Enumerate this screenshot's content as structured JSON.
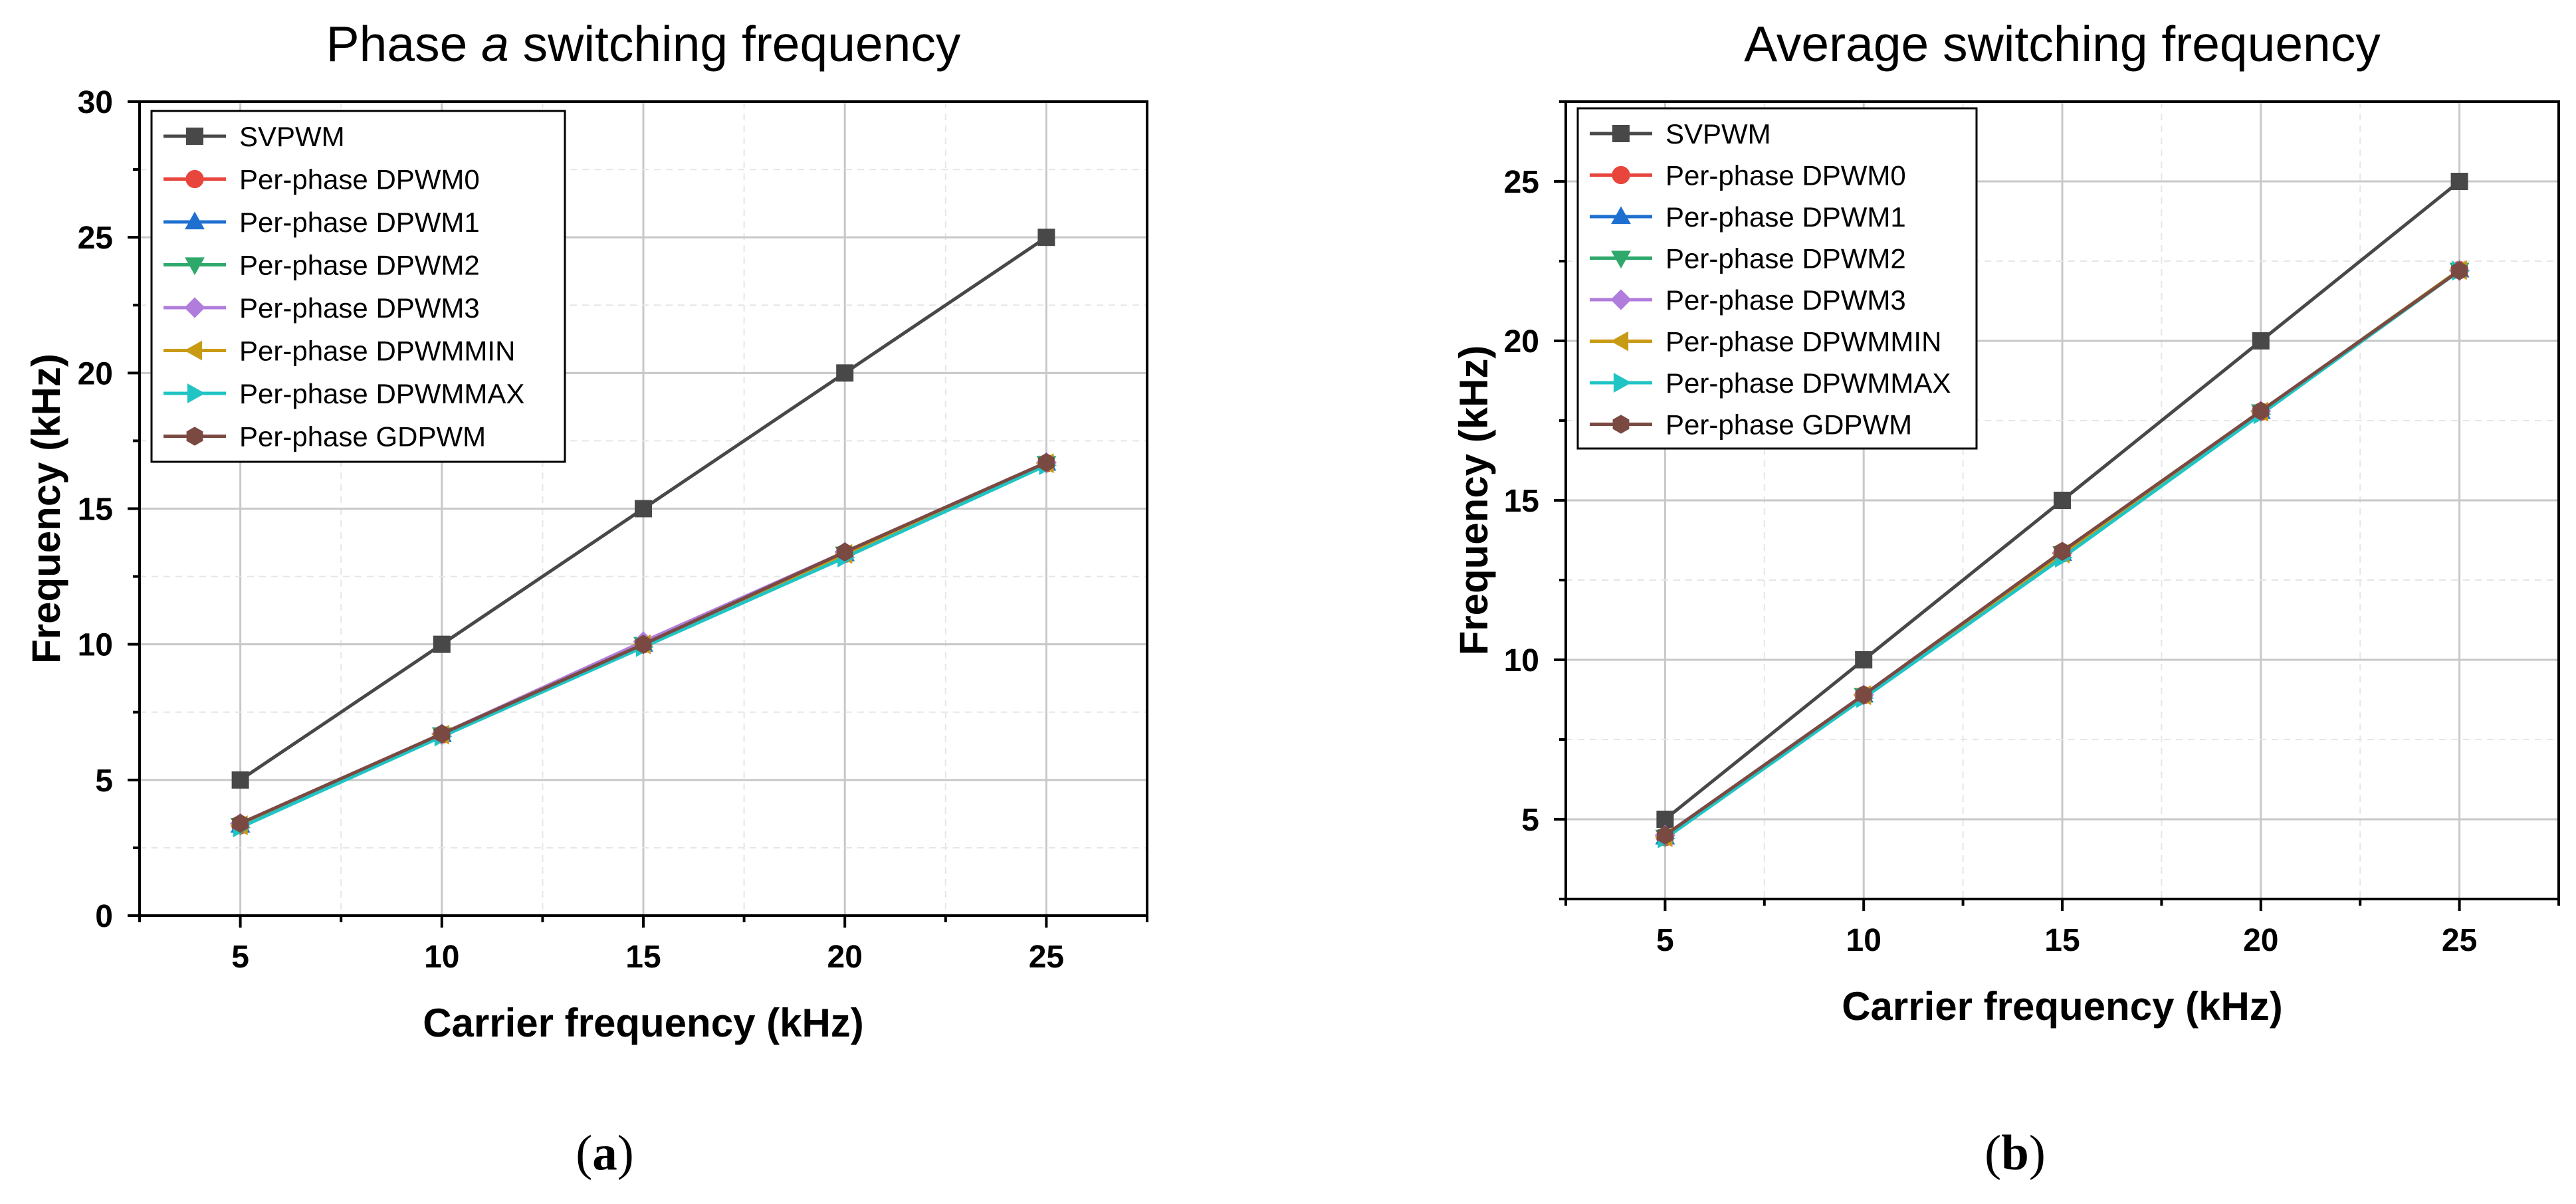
{
  "figure": {
    "captions": [
      "(a)",
      "(b)"
    ]
  },
  "chart_data": [
    {
      "type": "line",
      "title_prefix": "Phase ",
      "title_italic": "a",
      "title_suffix": " switching frequency",
      "xlabel": "Carrier frequency (kHz)",
      "ylabel": "Frequency (kHz)",
      "xlim": [
        2.5,
        27.5
      ],
      "ylim": [
        0,
        30
      ],
      "xticks": [
        5,
        10,
        15,
        20,
        25
      ],
      "yticks": [
        0,
        5,
        10,
        15,
        20,
        25,
        30
      ],
      "grid": true,
      "legend_position": "top-left",
      "x": [
        5,
        10,
        15,
        20,
        25
      ],
      "series": [
        {
          "name": "SVPWM",
          "color": "#484848",
          "marker": "square",
          "values": [
            5,
            10,
            15,
            20,
            25
          ]
        },
        {
          "name": "Per-phase DPWM0",
          "color": "#e8453c",
          "marker": "circle",
          "values": [
            3.33,
            6.67,
            10.0,
            13.33,
            16.67
          ]
        },
        {
          "name": "Per-phase DPWM1",
          "color": "#1f6fd1",
          "marker": "triangle-up",
          "values": [
            3.33,
            6.67,
            10.0,
            13.33,
            16.67
          ]
        },
        {
          "name": "Per-phase DPWM2",
          "color": "#2ea86b",
          "marker": "triangle-down",
          "values": [
            3.33,
            6.67,
            10.0,
            13.33,
            16.67
          ]
        },
        {
          "name": "Per-phase DPWM3",
          "color": "#b07ddc",
          "marker": "diamond",
          "values": [
            3.4,
            6.7,
            10.1,
            13.4,
            16.7
          ]
        },
        {
          "name": "Per-phase DPWMMIN",
          "color": "#c99a14",
          "marker": "triangle-left",
          "values": [
            3.33,
            6.67,
            10.0,
            13.33,
            16.67
          ]
        },
        {
          "name": "Per-phase DPWMMAX",
          "color": "#20c4c4",
          "marker": "triangle-right",
          "values": [
            3.25,
            6.6,
            9.9,
            13.2,
            16.6
          ]
        },
        {
          "name": "Per-phase GDPWM",
          "color": "#7a4a42",
          "marker": "hexagon",
          "values": [
            3.4,
            6.7,
            10.0,
            13.4,
            16.7
          ]
        }
      ]
    },
    {
      "type": "line",
      "title_prefix": "Average switching frequency",
      "title_italic": "",
      "title_suffix": "",
      "xlabel": "Carrier frequency (kHz)",
      "ylabel": "Frequency (kHz)",
      "xlim": [
        2.5,
        27.5
      ],
      "ylim": [
        2.5,
        27.5
      ],
      "xticks": [
        5,
        10,
        15,
        20,
        25
      ],
      "yticks": [
        5,
        10,
        15,
        20,
        25
      ],
      "grid": true,
      "legend_position": "top-left",
      "x": [
        5,
        10,
        15,
        20,
        25
      ],
      "series": [
        {
          "name": "SVPWM",
          "color": "#484848",
          "marker": "square",
          "values": [
            5,
            10,
            15,
            20,
            25
          ]
        },
        {
          "name": "Per-phase DPWM0",
          "color": "#e8453c",
          "marker": "circle",
          "values": [
            4.44,
            8.89,
            13.33,
            17.78,
            22.22
          ]
        },
        {
          "name": "Per-phase DPWM1",
          "color": "#1f6fd1",
          "marker": "triangle-up",
          "values": [
            4.44,
            8.89,
            13.33,
            17.78,
            22.22
          ]
        },
        {
          "name": "Per-phase DPWM2",
          "color": "#2ea86b",
          "marker": "triangle-down",
          "values": [
            4.44,
            8.89,
            13.33,
            17.78,
            22.22
          ]
        },
        {
          "name": "Per-phase DPWM3",
          "color": "#b07ddc",
          "marker": "diamond",
          "values": [
            4.5,
            8.9,
            13.35,
            17.8,
            22.2
          ]
        },
        {
          "name": "Per-phase DPWMMIN",
          "color": "#c99a14",
          "marker": "triangle-left",
          "values": [
            4.44,
            8.89,
            13.33,
            17.78,
            22.22
          ]
        },
        {
          "name": "Per-phase DPWMMAX",
          "color": "#20c4c4",
          "marker": "triangle-right",
          "values": [
            4.4,
            8.8,
            13.2,
            17.7,
            22.2
          ]
        },
        {
          "name": "Per-phase GDPWM",
          "color": "#7a4a42",
          "marker": "hexagon",
          "values": [
            4.5,
            8.9,
            13.4,
            17.8,
            22.2
          ]
        }
      ]
    }
  ]
}
